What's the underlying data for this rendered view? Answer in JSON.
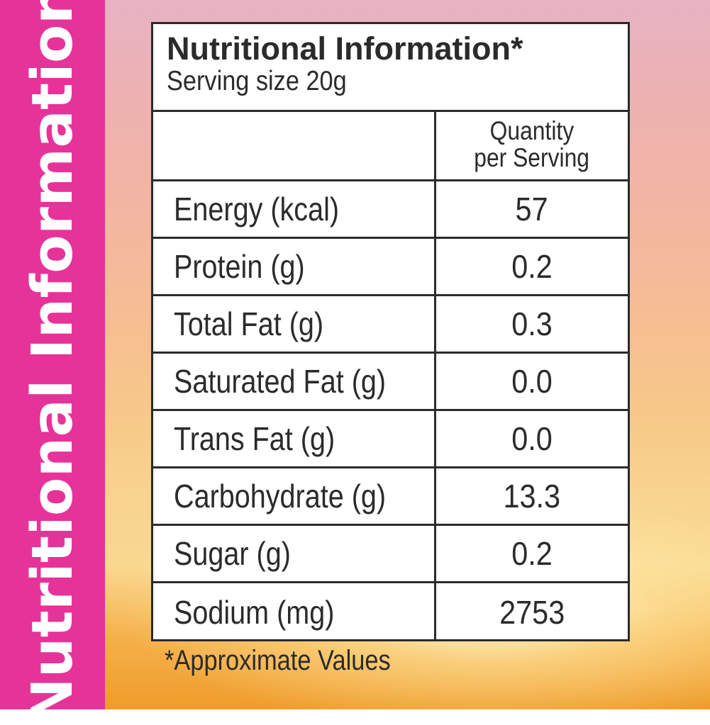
{
  "side_title": "Nutritional Information",
  "header": {
    "title": "Nutritional Information*",
    "serving": "Serving size 20g"
  },
  "table": {
    "column_header_line1": "Quantity",
    "column_header_line2": "per Serving",
    "rows": [
      {
        "name": "Energy (kcal)",
        "value": "57"
      },
      {
        "name": "Protein (g)",
        "value": "0.2"
      },
      {
        "name": "Total Fat (g)",
        "value": "0.3"
      },
      {
        "name": "Saturated Fat (g)",
        "value": "0.0"
      },
      {
        "name": "Trans Fat (g)",
        "value": "0.0"
      },
      {
        "name": "Carbohydrate (g)",
        "value": "13.3"
      },
      {
        "name": "Sugar (g)",
        "value": "0.2"
      },
      {
        "name": "Sodium (mg)",
        "value": "2753"
      }
    ]
  },
  "footnote": "*Approximate Values",
  "colors": {
    "side_band": "#e6339a",
    "text": "#2b2b2b",
    "panel": "#ffffff"
  }
}
